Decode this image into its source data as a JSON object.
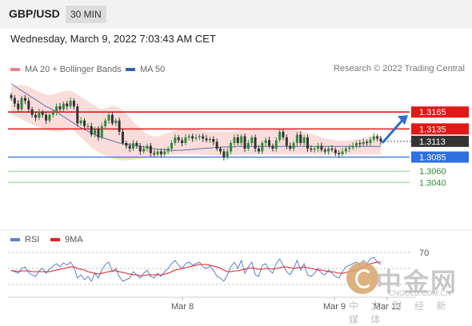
{
  "header": {
    "pair": "GBP/USD",
    "timeframe": "30 MIN"
  },
  "timestamp": "Wednesday, March 9, 2022 7:03:43 AM CET",
  "legend": {
    "ma20": {
      "label": "MA 20 + Bollinger Bands",
      "color": "#f08080"
    },
    "ma50": {
      "label": "MA 50",
      "color": "#3a5fa8"
    }
  },
  "credit": "Research © 2022 Trading Central",
  "rsi_legend": {
    "rsi": {
      "label": "RSI",
      "color": "#5b7fd6"
    },
    "ma9": {
      "label": "9MA",
      "color": "#e02020"
    }
  },
  "watermark": {
    "text": "中金网",
    "url": "CNGOLD.COM.CN",
    "sub": "中 文 财 经 新 媒 体"
  },
  "chart_data": [
    {
      "type": "candlestick",
      "ylim": [
        1.2995,
        1.3215
      ],
      "levels": [
        {
          "value": 1.3165,
          "label": "1.3165",
          "style": "resistance"
        },
        {
          "value": 1.3135,
          "label": "1.3135",
          "style": "resistance"
        },
        {
          "value": 1.3113,
          "label": "1.3113",
          "style": "current"
        },
        {
          "value": 1.3085,
          "label": "1.3085",
          "style": "support-ma"
        },
        {
          "value": 1.306,
          "label": "1.3060",
          "style": "support"
        },
        {
          "value": 1.304,
          "label": "1.3040",
          "style": "support"
        }
      ],
      "x_labels": [
        "Mar 8",
        "Mar 9",
        "Mar 12"
      ],
      "close": [
        1.319,
        1.318,
        1.317,
        1.319,
        1.3185,
        1.317,
        1.316,
        1.3155,
        1.3165,
        1.316,
        1.315,
        1.316,
        1.3165,
        1.3175,
        1.317,
        1.318,
        1.3175,
        1.3185,
        1.3175,
        1.3145,
        1.315,
        1.314,
        1.314,
        1.3125,
        1.3135,
        1.312,
        1.314,
        1.315,
        1.316,
        1.3145,
        1.315,
        1.313,
        1.311,
        1.3105,
        1.31,
        1.311,
        1.3105,
        1.3095,
        1.31,
        1.3105,
        1.3092,
        1.309,
        1.3095,
        1.309,
        1.3095,
        1.31,
        1.311,
        1.312,
        1.3115,
        1.311,
        1.312,
        1.3122,
        1.3118,
        1.312,
        1.3122,
        1.3118,
        1.3115,
        1.3117,
        1.3112,
        1.31,
        1.3095,
        1.3085,
        1.3095,
        1.311,
        1.312,
        1.311,
        1.3122,
        1.31,
        1.311,
        1.312,
        1.31,
        1.3095,
        1.311,
        1.3115,
        1.3105,
        1.31,
        1.3115,
        1.313,
        1.312,
        1.3105,
        1.31,
        1.311,
        1.3125,
        1.311,
        1.312,
        1.31,
        1.3098,
        1.31,
        1.3105,
        1.3098,
        1.3095,
        1.31,
        1.3098,
        1.3092,
        1.309,
        1.3095,
        1.31,
        1.3102,
        1.3105,
        1.311,
        1.3108,
        1.3112,
        1.311,
        1.3116,
        1.3122,
        1.3118,
        1.3113
      ],
      "ma50": [
        1.3215,
        1.3211,
        1.3207,
        1.3203,
        1.3199,
        1.3195,
        1.3191,
        1.3187,
        1.3183,
        1.3179,
        1.3175,
        1.3172,
        1.3169,
        1.3165,
        1.3161,
        1.3157,
        1.3153,
        1.3149,
        1.3145,
        1.3141,
        1.3137,
        1.3134,
        1.3131,
        1.3128,
        1.3125,
        1.3122,
        1.312,
        1.3118,
        1.3116,
        1.3114,
        1.3112,
        1.311,
        1.3109,
        1.3108,
        1.3107,
        1.3106,
        1.3105,
        1.3104,
        1.3103,
        1.3102,
        1.3101,
        1.31,
        1.3099,
        1.3099,
        1.3098,
        1.3098,
        1.3097,
        1.3097,
        1.3097,
        1.3097,
        1.3098,
        1.3098,
        1.3099,
        1.3099,
        1.31,
        1.31,
        1.3101,
        1.3101,
        1.3102,
        1.3102,
        1.3102,
        1.3103,
        1.3103,
        1.3103,
        1.3103,
        1.3104,
        1.3104,
        1.3104,
        1.3104,
        1.3104,
        1.3104,
        1.3104,
        1.3104,
        1.3104,
        1.3104,
        1.3104,
        1.3104,
        1.3104,
        1.3104,
        1.3104,
        1.3104,
        1.3104,
        1.3104,
        1.3104,
        1.3104,
        1.3104,
        1.3104,
        1.3104,
        1.3104,
        1.3104,
        1.3104,
        1.3104,
        1.3104,
        1.3104,
        1.3104,
        1.3104,
        1.3104,
        1.3104,
        1.3104,
        1.3104,
        1.3104,
        1.3104,
        1.3104,
        1.3104,
        1.3104,
        1.3104,
        1.3104
      ],
      "bb_upper": [
        1.321,
        1.3212,
        1.3213,
        1.3213,
        1.3212,
        1.321,
        1.3207,
        1.3204,
        1.3201,
        1.3198,
        1.3196,
        1.3195,
        1.3196,
        1.3198,
        1.32,
        1.3202,
        1.3203,
        1.3203,
        1.32,
        1.3196,
        1.3192,
        1.3188,
        1.3184,
        1.318,
        1.3176,
        1.3172,
        1.317,
        1.3171,
        1.3174,
        1.3176,
        1.3175,
        1.3172,
        1.3168,
        1.3162,
        1.3155,
        1.3148,
        1.3142,
        1.3135,
        1.313,
        1.3126,
        1.3123,
        1.3122,
        1.3122,
        1.3124,
        1.3126,
        1.3128,
        1.313,
        1.3132,
        1.3134,
        1.3135,
        1.3136,
        1.3136,
        1.3135,
        1.3134,
        1.3133,
        1.3132,
        1.3131,
        1.313,
        1.313,
        1.313,
        1.313,
        1.313,
        1.313,
        1.313,
        1.3131,
        1.3132,
        1.3133,
        1.3134,
        1.3134,
        1.3134,
        1.3134,
        1.3134,
        1.3133,
        1.3133,
        1.3133,
        1.3133,
        1.3134,
        1.3135,
        1.3135,
        1.3135,
        1.3134,
        1.3133,
        1.3132,
        1.3131,
        1.313,
        1.3128,
        1.3126,
        1.3124,
        1.3122,
        1.312,
        1.3118,
        1.3117,
        1.3116,
        1.3115,
        1.3114,
        1.3114,
        1.3114,
        1.3115,
        1.3116,
        1.3117,
        1.3118,
        1.3119,
        1.312,
        1.3121,
        1.3122,
        1.3122,
        1.3122
      ],
      "bb_lower": [
        1.316,
        1.3158,
        1.3155,
        1.3152,
        1.3149,
        1.3146,
        1.3143,
        1.314,
        1.3138,
        1.3136,
        1.3134,
        1.3132,
        1.3131,
        1.313,
        1.313,
        1.3131,
        1.3133,
        1.3135,
        1.3132,
        1.3126,
        1.312,
        1.3114,
        1.3108,
        1.3102,
        1.3098,
        1.3094,
        1.309,
        1.3087,
        1.3085,
        1.3083,
        1.3081,
        1.308,
        1.3079,
        1.3079,
        1.308,
        1.308,
        1.3081,
        1.3082,
        1.3083,
        1.3084,
        1.3085,
        1.3086,
        1.3087,
        1.3088,
        1.3088,
        1.3089,
        1.3089,
        1.309,
        1.309,
        1.309,
        1.309,
        1.309,
        1.309,
        1.309,
        1.309,
        1.3089,
        1.3089,
        1.3088,
        1.3088,
        1.3087,
        1.3087,
        1.3087,
        1.3087,
        1.3088,
        1.3088,
        1.3089,
        1.3089,
        1.309,
        1.309,
        1.309,
        1.309,
        1.309,
        1.309,
        1.309,
        1.309,
        1.309,
        1.309,
        1.309,
        1.309,
        1.309,
        1.309,
        1.309,
        1.309,
        1.309,
        1.309,
        1.309,
        1.309,
        1.309,
        1.309,
        1.309,
        1.309,
        1.309,
        1.309,
        1.309,
        1.309,
        1.309,
        1.309,
        1.309,
        1.309,
        1.309,
        1.309,
        1.309,
        1.309,
        1.309,
        1.309,
        1.309,
        1.309
      ]
    },
    {
      "type": "line",
      "name": "RSI",
      "ylim": [
        20,
        80
      ],
      "levels": [
        70,
        50,
        30
      ],
      "tick_labels": [
        "70"
      ],
      "rsi": [
        48,
        46,
        44,
        50,
        52,
        45,
        42,
        40,
        47,
        50,
        44,
        49,
        53,
        56,
        52,
        57,
        54,
        58,
        52,
        38,
        42,
        36,
        40,
        34,
        44,
        38,
        48,
        55,
        58,
        46,
        50,
        40,
        34,
        36,
        38,
        46,
        42,
        38,
        44,
        48,
        40,
        38,
        44,
        40,
        46,
        50,
        56,
        60,
        54,
        50,
        56,
        58,
        54,
        56,
        58,
        52,
        50,
        53,
        48,
        40,
        38,
        34,
        42,
        52,
        58,
        50,
        60,
        44,
        52,
        58,
        42,
        40,
        54,
        56,
        48,
        44,
        56,
        62,
        54,
        46,
        42,
        50,
        60,
        48,
        56,
        42,
        40,
        44,
        50,
        44,
        42,
        48,
        44,
        40,
        38,
        46,
        52,
        54,
        56,
        58,
        54,
        60,
        56,
        62,
        64,
        58,
        55
      ],
      "ma9": [
        47,
        47,
        46,
        47,
        47,
        47,
        46,
        46,
        46,
        46,
        46,
        46,
        47,
        48,
        49,
        50,
        51,
        52,
        52,
        50,
        49,
        48,
        46,
        45,
        44,
        43,
        44,
        45,
        46,
        47,
        47,
        46,
        45,
        44,
        43,
        42,
        42,
        41,
        41,
        42,
        42,
        42,
        42,
        42,
        43,
        44,
        46,
        48,
        49,
        50,
        51,
        52,
        53,
        54,
        55,
        55,
        55,
        54,
        53,
        52,
        50,
        48,
        46,
        46,
        47,
        47,
        48,
        49,
        50,
        51,
        50,
        49,
        49,
        50,
        50,
        49,
        50,
        51,
        52,
        52,
        51,
        50,
        51,
        51,
        52,
        51,
        50,
        49,
        48,
        48,
        47,
        46,
        46,
        45,
        44,
        44,
        45,
        46,
        47,
        48,
        50,
        52,
        54,
        56,
        57,
        58,
        58
      ]
    }
  ]
}
